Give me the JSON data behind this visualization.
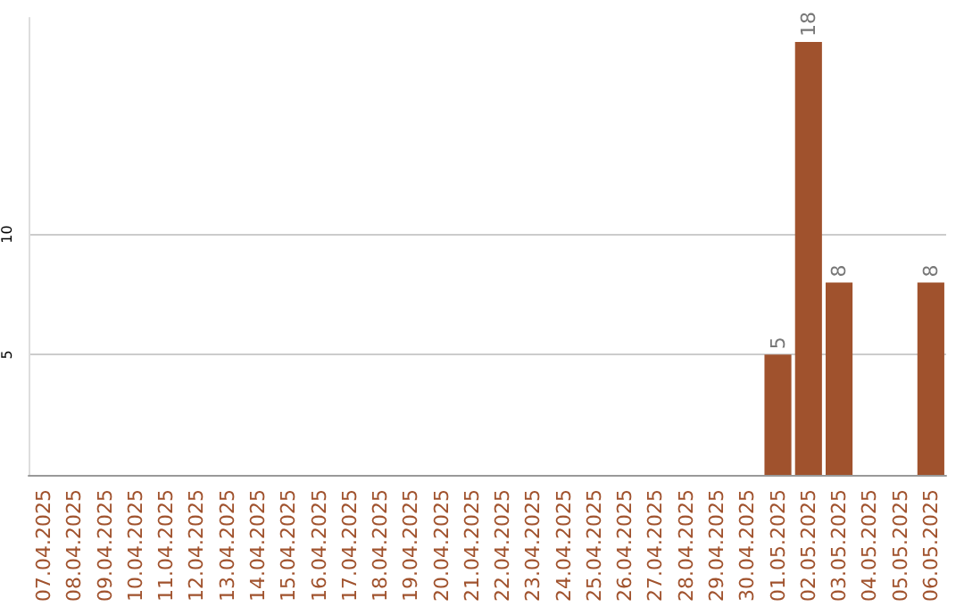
{
  "chart_data": {
    "type": "bar",
    "categories": [
      "07.04.2025",
      "08.04.2025",
      "09.04.2025",
      "10.04.2025",
      "11.04.2025",
      "12.04.2025",
      "13.04.2025",
      "14.04.2025",
      "15.04.2025",
      "16.04.2025",
      "17.04.2025",
      "18.04.2025",
      "19.04.2025",
      "20.04.2025",
      "21.04.2025",
      "22.04.2025",
      "23.04.2025",
      "24.04.2025",
      "25.04.2025",
      "26.04.2025",
      "27.04.2025",
      "28.04.2025",
      "29.04.2025",
      "30.04.2025",
      "01.05.2025",
      "02.05.2025",
      "03.05.2025",
      "04.05.2025",
      "05.05.2025",
      "06.05.2025"
    ],
    "values": [
      0,
      0,
      0,
      0,
      0,
      0,
      0,
      0,
      0,
      0,
      0,
      0,
      0,
      0,
      0,
      0,
      0,
      0,
      0,
      0,
      0,
      0,
      0,
      0,
      5,
      18,
      8,
      0,
      0,
      8
    ],
    "value_labels": [
      null,
      null,
      null,
      null,
      null,
      null,
      null,
      null,
      null,
      null,
      null,
      null,
      null,
      null,
      null,
      null,
      null,
      null,
      null,
      null,
      null,
      null,
      null,
      null,
      "5",
      "18",
      "8",
      null,
      null,
      "8"
    ],
    "color": "#a0522d",
    "ylim": [
      0,
      19
    ],
    "yticks": [
      5,
      10
    ],
    "grid": "y"
  }
}
